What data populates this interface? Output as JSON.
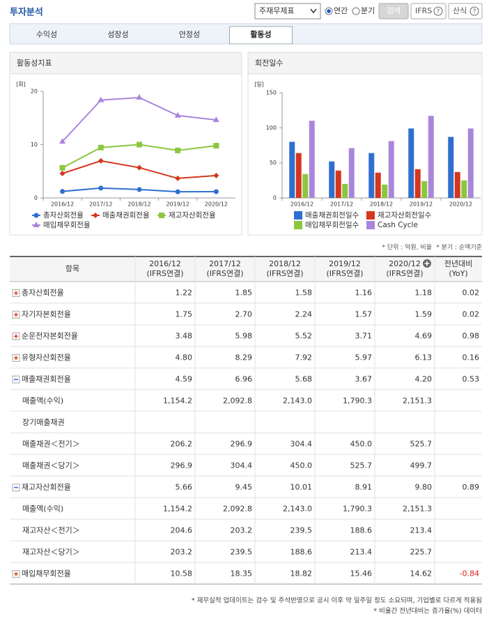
{
  "header": {
    "title": "투자분석",
    "select": "주재무제표",
    "period_options": [
      "연간",
      "분기"
    ],
    "period_selected": 0,
    "buttons": [
      "검색",
      "IFRS",
      "산식"
    ]
  },
  "tabs": {
    "items": [
      "수익성",
      "성장성",
      "안정성",
      "활동성"
    ],
    "active": 3
  },
  "chart_data": [
    {
      "type": "line",
      "title": "활동성지표",
      "y_unit": "[회]",
      "categories": [
        "2016/12",
        "2017/12",
        "2018/12",
        "2019/12",
        "2020/12"
      ],
      "ylim": [
        0,
        20
      ],
      "yticks": [
        0,
        10,
        20
      ],
      "grid": false,
      "legend": "bottom",
      "series": [
        {
          "name": "총자산회전율",
          "color": "#2f6fd0",
          "marker": "circle",
          "values": [
            1.22,
            1.85,
            1.58,
            1.16,
            1.18
          ]
        },
        {
          "name": "매출채권회전율",
          "color": "#d5361d",
          "marker": "diamond",
          "values": [
            4.59,
            6.96,
            5.68,
            3.67,
            4.2
          ]
        },
        {
          "name": "재고자산회전율",
          "color": "#8cc63f",
          "marker": "square",
          "values": [
            5.66,
            9.45,
            10.01,
            8.91,
            9.8
          ]
        },
        {
          "name": "매입채무회전율",
          "color": "#a986db",
          "marker": "triangle",
          "values": [
            10.58,
            18.35,
            18.82,
            15.46,
            14.62
          ]
        }
      ]
    },
    {
      "type": "bar",
      "title": "회전일수",
      "y_unit": "[일]",
      "categories": [
        "2016/12",
        "2017/12",
        "2018/12",
        "2019/12",
        "2020/12"
      ],
      "ylim": [
        0,
        150
      ],
      "yticks": [
        0,
        50,
        100,
        150
      ],
      "grid": false,
      "legend": "bottom",
      "series": [
        {
          "name": "매출채권회전일수",
          "color": "#2f6fd0",
          "values": [
            80,
            52,
            64,
            99,
            87
          ]
        },
        {
          "name": "재고자산회전일수",
          "color": "#d5361d",
          "values": [
            64,
            39,
            36,
            41,
            37
          ]
        },
        {
          "name": "매입채무회전일수",
          "color": "#8cc63f",
          "values": [
            34,
            20,
            19,
            24,
            25
          ]
        },
        {
          "name": "Cash Cycle",
          "color": "#a986db",
          "values": [
            110,
            71,
            81,
            117,
            99
          ]
        }
      ]
    }
  ],
  "notes": [
    "* 단위 : 억원, 비율",
    "* 분기 : 순액기준"
  ],
  "table": {
    "columns": [
      [
        "항목"
      ],
      [
        "2016/12",
        "(IFRS연결)"
      ],
      [
        "2017/12",
        "(IFRS연결)"
      ],
      [
        "2018/12",
        "(IFRS연결)"
      ],
      [
        "2019/12",
        "(IFRS연결)"
      ],
      [
        "2020/12",
        "(IFRS연결)"
      ],
      [
        "전년대비",
        "(YoY)"
      ]
    ],
    "rows": [
      {
        "label": "총자산회전율",
        "kind": "plus",
        "cells": [
          "1.22",
          "1.85",
          "1.58",
          "1.16",
          "1.18",
          "0.02"
        ]
      },
      {
        "label": "자기자본회전율",
        "kind": "plus",
        "cells": [
          "1.75",
          "2.70",
          "2.24",
          "1.57",
          "1.59",
          "0.02"
        ]
      },
      {
        "label": "순운전자본회전율",
        "kind": "plus",
        "cells": [
          "3.48",
          "5.98",
          "5.52",
          "3.71",
          "4.69",
          "0.98"
        ]
      },
      {
        "label": "유형자산회전율",
        "kind": "plus",
        "cells": [
          "4.80",
          "8.29",
          "7.92",
          "5.97",
          "6.13",
          "0.16"
        ]
      },
      {
        "label": "매출채권회전율",
        "kind": "minus",
        "cells": [
          "4.59",
          "6.96",
          "5.68",
          "3.67",
          "4.20",
          "0.53"
        ]
      },
      {
        "label": "매출액(수익)",
        "kind": "sub",
        "cells": [
          "1,154.2",
          "2,092.8",
          "2,143.0",
          "1,790.3",
          "2,151.3",
          null
        ]
      },
      {
        "label": "장기매출채권",
        "kind": "sub",
        "cells": [
          null,
          null,
          null,
          null,
          null,
          null
        ]
      },
      {
        "label": "매출채권＜전기＞",
        "kind": "sub",
        "cells": [
          "206.2",
          "296.9",
          "304.4",
          "450.0",
          "525.7",
          null
        ]
      },
      {
        "label": "매출채권＜당기＞",
        "kind": "sub",
        "cells": [
          "296.9",
          "304.4",
          "450.0",
          "525.7",
          "499.7",
          null
        ]
      },
      {
        "label": "재고자산회전율",
        "kind": "minus",
        "cells": [
          "5.66",
          "9.45",
          "10.01",
          "8.91",
          "9.80",
          "0.89"
        ]
      },
      {
        "label": "매출액(수익)",
        "kind": "sub",
        "cells": [
          "1,154.2",
          "2,092.8",
          "2,143.0",
          "1,790.3",
          "2,151.3",
          null
        ]
      },
      {
        "label": "재고자산＜전기＞",
        "kind": "sub",
        "cells": [
          "204.6",
          "203.2",
          "239.5",
          "188.6",
          "213.4",
          null
        ]
      },
      {
        "label": "재고자산＜당기＞",
        "kind": "sub",
        "cells": [
          "203.2",
          "239.5",
          "188.6",
          "213.4",
          "225.7",
          null
        ]
      },
      {
        "label": "매입채무회전율",
        "kind": "plus",
        "cells": [
          "10.58",
          "18.35",
          "18.82",
          "15.46",
          "14.62",
          "-0.84"
        ]
      }
    ]
  },
  "footnotes": [
    "* 재무실적 업데이트는 검수 및 주석반영으로 공시 이후 약 일주일 정도 소요되며, 기업별로 다르게 적용됨",
    "* 비율간 전년대비는 증가율(%) 데이터"
  ]
}
